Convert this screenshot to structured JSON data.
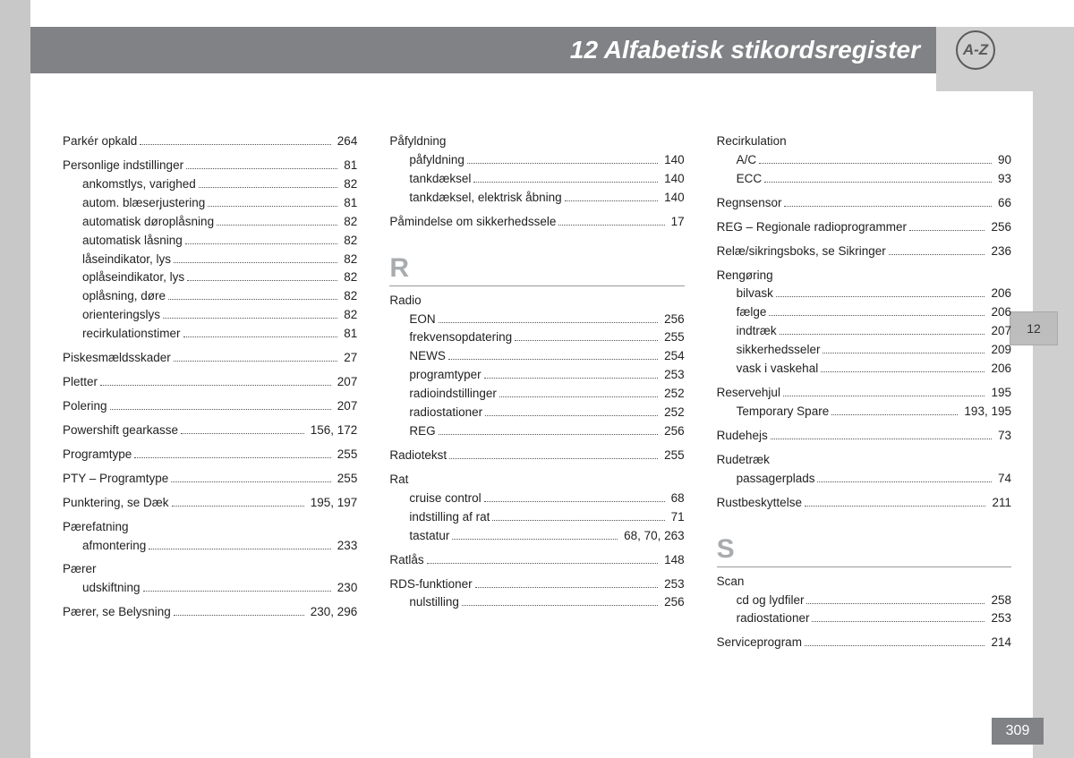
{
  "header": {
    "title": "12 Alfabetisk stikordsregister",
    "badge": "A-Z"
  },
  "tab": "12",
  "page_number": "309",
  "columns": [
    [
      {
        "t": "entry",
        "label": "Parkér opkald",
        "pg": "264"
      },
      {
        "t": "gap"
      },
      {
        "t": "entry",
        "label": "Personlige indstillinger",
        "pg": "81"
      },
      {
        "t": "entry",
        "sub": true,
        "label": "ankomstlys, varighed",
        "pg": "82"
      },
      {
        "t": "entry",
        "sub": true,
        "label": "autom. blæserjustering",
        "pg": "81"
      },
      {
        "t": "entry",
        "sub": true,
        "label": "automatisk døroplåsning",
        "pg": "82"
      },
      {
        "t": "entry",
        "sub": true,
        "label": "automatisk låsning",
        "pg": "82"
      },
      {
        "t": "entry",
        "sub": true,
        "label": "låseindikator, lys",
        "pg": "82"
      },
      {
        "t": "entry",
        "sub": true,
        "label": "oplåseindikator, lys",
        "pg": "82"
      },
      {
        "t": "entry",
        "sub": true,
        "label": "oplåsning, døre",
        "pg": "82"
      },
      {
        "t": "entry",
        "sub": true,
        "label": "orienteringslys",
        "pg": "82"
      },
      {
        "t": "entry",
        "sub": true,
        "label": "recirkulationstimer",
        "pg": "81"
      },
      {
        "t": "gap"
      },
      {
        "t": "entry",
        "label": "Piskesmældsskader",
        "pg": "27"
      },
      {
        "t": "gap"
      },
      {
        "t": "entry",
        "label": "Pletter",
        "pg": "207"
      },
      {
        "t": "gap"
      },
      {
        "t": "entry",
        "label": "Polering",
        "pg": "207"
      },
      {
        "t": "gap"
      },
      {
        "t": "entry",
        "label": "Powershift gearkasse",
        "pg": "156, 172"
      },
      {
        "t": "gap"
      },
      {
        "t": "entry",
        "label": "Programtype",
        "pg": "255"
      },
      {
        "t": "gap"
      },
      {
        "t": "entry",
        "label": "PTY – Programtype",
        "pg": "255"
      },
      {
        "t": "gap"
      },
      {
        "t": "entry",
        "label": "Punktering, se Dæk",
        "pg": "195, 197"
      },
      {
        "t": "gap"
      },
      {
        "t": "heading",
        "label": "Pærefatning"
      },
      {
        "t": "entry",
        "sub": true,
        "label": "afmontering",
        "pg": "233"
      },
      {
        "t": "gap"
      },
      {
        "t": "heading",
        "label": "Pærer"
      },
      {
        "t": "entry",
        "sub": true,
        "label": "udskiftning",
        "pg": "230"
      },
      {
        "t": "gap"
      },
      {
        "t": "entry",
        "label": "Pærer, se Belysning",
        "pg": "230, 296"
      }
    ],
    [
      {
        "t": "heading",
        "label": "Påfyldning"
      },
      {
        "t": "entry",
        "sub": true,
        "label": "påfyldning",
        "pg": "140"
      },
      {
        "t": "entry",
        "sub": true,
        "label": "tankdæksel",
        "pg": "140"
      },
      {
        "t": "entry",
        "sub": true,
        "label": "tankdæksel, elektrisk åbning",
        "pg": "140"
      },
      {
        "t": "gap"
      },
      {
        "t": "entry",
        "label": "Påmindelse om sikkerhedssele",
        "pg": "17"
      },
      {
        "t": "letter",
        "label": "R"
      },
      {
        "t": "rule"
      },
      {
        "t": "heading",
        "label": "Radio"
      },
      {
        "t": "entry",
        "sub": true,
        "label": "EON",
        "pg": "256"
      },
      {
        "t": "entry",
        "sub": true,
        "label": "frekvensopdatering",
        "pg": "255"
      },
      {
        "t": "entry",
        "sub": true,
        "label": "NEWS",
        "pg": "254"
      },
      {
        "t": "entry",
        "sub": true,
        "label": "programtyper",
        "pg": "253"
      },
      {
        "t": "entry",
        "sub": true,
        "label": "radioindstillinger",
        "pg": "252"
      },
      {
        "t": "entry",
        "sub": true,
        "label": "radiostationer",
        "pg": "252"
      },
      {
        "t": "entry",
        "sub": true,
        "label": "REG",
        "pg": "256"
      },
      {
        "t": "gap"
      },
      {
        "t": "entry",
        "label": "Radiotekst",
        "pg": "255"
      },
      {
        "t": "gap"
      },
      {
        "t": "heading",
        "label": "Rat"
      },
      {
        "t": "entry",
        "sub": true,
        "label": "cruise control",
        "pg": "68"
      },
      {
        "t": "entry",
        "sub": true,
        "label": "indstilling af rat",
        "pg": "71"
      },
      {
        "t": "entry",
        "sub": true,
        "label": "tastatur",
        "pg": "68, 70, 263"
      },
      {
        "t": "gap"
      },
      {
        "t": "entry",
        "label": "Ratlås",
        "pg": "148"
      },
      {
        "t": "gap"
      },
      {
        "t": "entry",
        "label": "RDS-funktioner",
        "pg": "253"
      },
      {
        "t": "entry",
        "sub": true,
        "label": "nulstilling",
        "pg": "256"
      }
    ],
    [
      {
        "t": "heading",
        "label": "Recirkulation"
      },
      {
        "t": "entry",
        "sub": true,
        "label": "A/C",
        "pg": "90"
      },
      {
        "t": "entry",
        "sub": true,
        "label": "ECC",
        "pg": "93"
      },
      {
        "t": "gap"
      },
      {
        "t": "entry",
        "label": "Regnsensor",
        "pg": "66"
      },
      {
        "t": "gap"
      },
      {
        "t": "entry",
        "label": "REG – Regionale radioprogrammer",
        "pg": "256"
      },
      {
        "t": "gap"
      },
      {
        "t": "entry",
        "label": "Relæ/sikringsboks, se Sikringer",
        "pg": "236"
      },
      {
        "t": "gap"
      },
      {
        "t": "heading",
        "label": "Rengøring"
      },
      {
        "t": "entry",
        "sub": true,
        "label": "bilvask",
        "pg": "206"
      },
      {
        "t": "entry",
        "sub": true,
        "label": "fælge",
        "pg": "206"
      },
      {
        "t": "entry",
        "sub": true,
        "label": "indtræk",
        "pg": "207"
      },
      {
        "t": "entry",
        "sub": true,
        "label": "sikkerhedsseler",
        "pg": "209"
      },
      {
        "t": "entry",
        "sub": true,
        "label": "vask i vaskehal",
        "pg": "206"
      },
      {
        "t": "gap"
      },
      {
        "t": "entry",
        "label": "Reservehjul",
        "pg": "195"
      },
      {
        "t": "entry",
        "sub": true,
        "label": "Temporary Spare",
        "pg": "193, 195"
      },
      {
        "t": "gap"
      },
      {
        "t": "entry",
        "label": "Rudehejs",
        "pg": "73"
      },
      {
        "t": "gap"
      },
      {
        "t": "heading",
        "label": "Rudetræk"
      },
      {
        "t": "entry",
        "sub": true,
        "label": "passagerplads",
        "pg": "74"
      },
      {
        "t": "gap"
      },
      {
        "t": "entry",
        "label": "Rustbeskyttelse",
        "pg": "211"
      },
      {
        "t": "letter",
        "label": "S"
      },
      {
        "t": "rule"
      },
      {
        "t": "heading",
        "label": "Scan"
      },
      {
        "t": "entry",
        "sub": true,
        "label": "cd og lydfiler",
        "pg": "258"
      },
      {
        "t": "entry",
        "sub": true,
        "label": "radiostationer",
        "pg": "253"
      },
      {
        "t": "gap"
      },
      {
        "t": "entry",
        "label": "Serviceprogram",
        "pg": "214"
      }
    ]
  ]
}
